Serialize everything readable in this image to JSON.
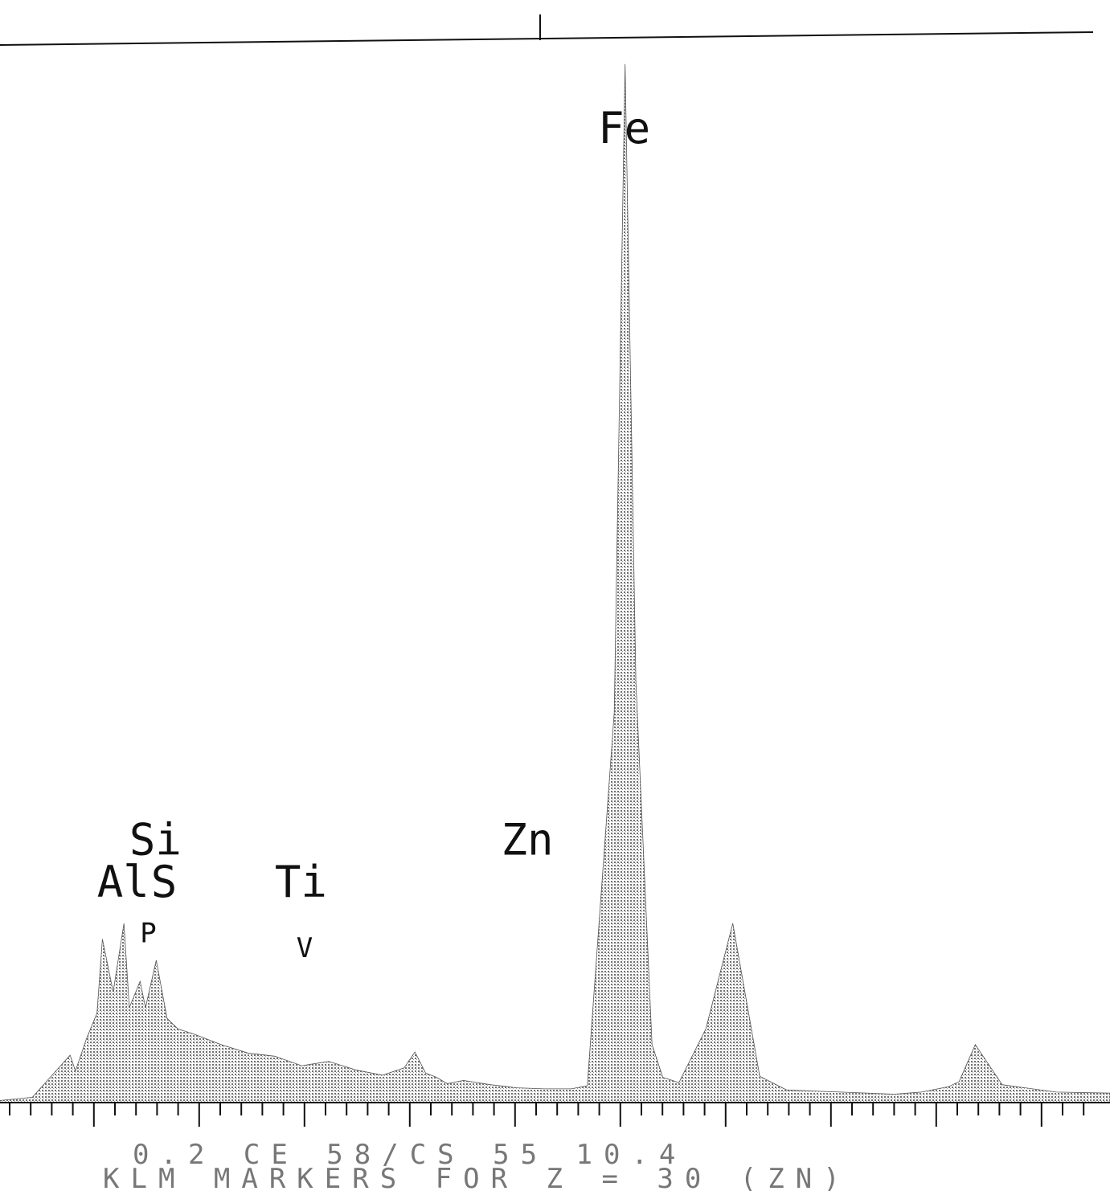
{
  "chart_data": {
    "type": "area",
    "title": "",
    "xlabel": "",
    "ylabel": "",
    "xlim": [
      -0.6,
      20.0
    ],
    "ylim": [
      0,
      100
    ],
    "grid": false,
    "legend": "none",
    "fill_color": "#999999",
    "series": [
      {
        "x": [
          -0.6,
          0.0,
          0.7,
          0.8,
          1.0,
          1.2,
          1.3,
          1.5,
          1.7,
          1.8,
          2.0,
          2.1,
          2.3,
          2.5,
          2.7,
          3.0,
          3.5,
          4.0,
          4.5,
          5.0,
          5.5,
          6.0,
          6.5,
          6.9,
          7.1,
          7.3,
          7.5,
          7.7,
          8.0,
          8.5,
          9.0,
          9.5,
          10.0,
          10.3,
          10.8,
          11.0,
          11.2,
          11.5,
          11.7,
          12.0,
          12.5,
          13.0,
          13.5,
          14.0,
          15.0,
          16.0,
          16.5,
          17.0,
          17.2,
          17.5,
          18.0,
          19.0,
          20.0
        ],
        "y": [
          0.2,
          0.5,
          4.5,
          3.0,
          6.0,
          8.5,
          15.5,
          10.5,
          17.0,
          9.0,
          11.5,
          9.0,
          13.5,
          8.0,
          7.0,
          6.5,
          5.5,
          4.7,
          4.4,
          3.5,
          3.9,
          3.1,
          2.6,
          3.3,
          4.8,
          2.8,
          2.4,
          1.8,
          2.1,
          1.7,
          1.4,
          1.3,
          1.3,
          1.6,
          37.0,
          98.5,
          40.0,
          5.5,
          2.4,
          1.9,
          7.0,
          17.0,
          2.5,
          1.2,
          1.0,
          0.8,
          1.0,
          1.5,
          2.0,
          5.5,
          1.7,
          1.0,
          0.9
        ]
      }
    ],
    "peak_labels": [
      {
        "text": "Fe",
        "x": 10.5,
        "y": 91
      },
      {
        "text": "Si",
        "x": 1.8,
        "y": 23.5
      },
      {
        "text": "Al",
        "x": 1.2,
        "y": 19.5
      },
      {
        "text": "S",
        "x": 2.2,
        "y": 19.5
      },
      {
        "text": "P",
        "x": 2.0,
        "y": 15.2
      },
      {
        "text": "Ti",
        "x": 4.5,
        "y": 19.5
      },
      {
        "text": "V",
        "x": 4.9,
        "y": 13.8
      },
      {
        "text": "Zn",
        "x": 8.7,
        "y": 23.5
      }
    ],
    "footer_line1": "0.2          CE 58/CS 55       10.4",
    "footer_line2": "KLM MARKERS FOR Z =   30 (ZN)"
  }
}
